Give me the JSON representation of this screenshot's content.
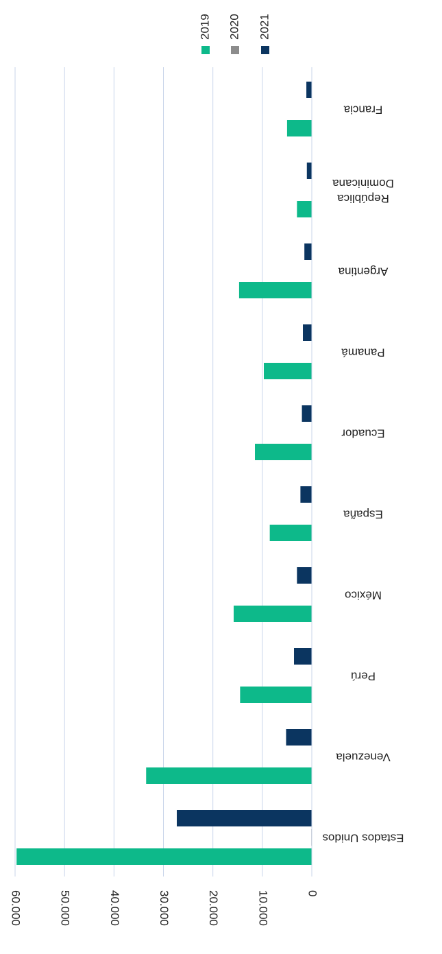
{
  "chart_data": {
    "type": "bar",
    "categories": [
      "Francia",
      "República Dominicana",
      "Argentina",
      "Panamá",
      "Ecuador",
      "España",
      "México",
      "Perú",
      "Venezuela",
      "Estados Unidos"
    ],
    "series": [
      {
        "name": "2019",
        "color": "#0db98a",
        "values": [
          5000,
          3000,
          14700,
          9700,
          11500,
          8500,
          15800,
          14500,
          33500,
          59700
        ]
      },
      {
        "name": "2020",
        "color": "#8c8c8c",
        "values": [
          0,
          0,
          0,
          0,
          0,
          0,
          0,
          0,
          0,
          100
        ]
      },
      {
        "name": "2021",
        "color": "#0b3560",
        "values": [
          1100,
          1000,
          1500,
          1800,
          2000,
          2300,
          3000,
          3600,
          5200,
          27300
        ]
      }
    ],
    "xlim": [
      0,
      60000
    ],
    "xticks": [
      0,
      {
        "value": 10000,
        "label": "10.000"
      },
      {
        "value": 20000,
        "label": "20.000"
      },
      {
        "value": 30000,
        "label": "30.000"
      },
      {
        "value": 40000,
        "label": "40.000"
      },
      {
        "value": 50000,
        "label": "50.000"
      },
      {
        "value": 60000,
        "label": "60.000"
      }
    ],
    "grid": true
  }
}
